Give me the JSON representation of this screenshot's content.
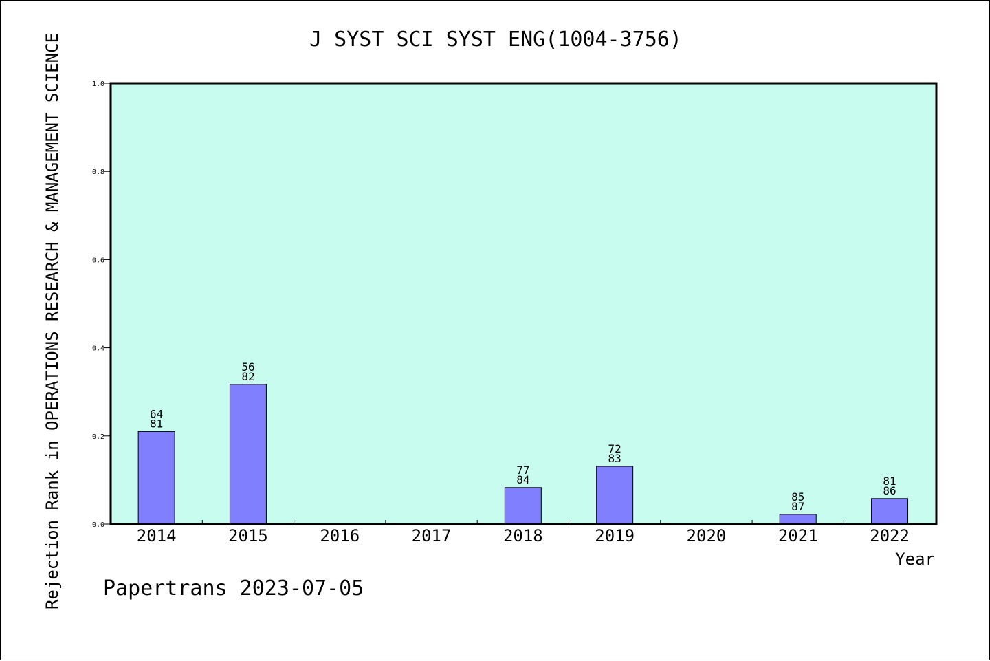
{
  "chart_data": {
    "type": "bar",
    "title": "J SYST SCI SYST ENG(1004-3756)",
    "ylabel": "Rejection Rank in OPERATIONS RESEARCH & MANAGEMENT SCIENCE",
    "xlabel": "Year",
    "categories": [
      "2014",
      "2015",
      "2016",
      "2017",
      "2018",
      "2019",
      "2020",
      "2021",
      "2022"
    ],
    "values": [
      0.21,
      0.317,
      null,
      null,
      0.083,
      0.131,
      null,
      0.022,
      0.058
    ],
    "bar_labels": [
      [
        "64",
        "81"
      ],
      [
        "56",
        "82"
      ],
      null,
      null,
      [
        "77",
        "84"
      ],
      [
        "72",
        "83"
      ],
      null,
      [
        "85",
        "87"
      ],
      [
        "81",
        "86"
      ]
    ],
    "ylim": [
      0,
      1.0
    ],
    "yticks": [
      "0.0",
      "0.2",
      "0.4",
      "0.6",
      "0.8",
      "1.0"
    ],
    "grid": false,
    "plot_background": "#c8fcee",
    "bar_color": "#8080ff"
  },
  "footer": "Papertrans 2023-07-05"
}
